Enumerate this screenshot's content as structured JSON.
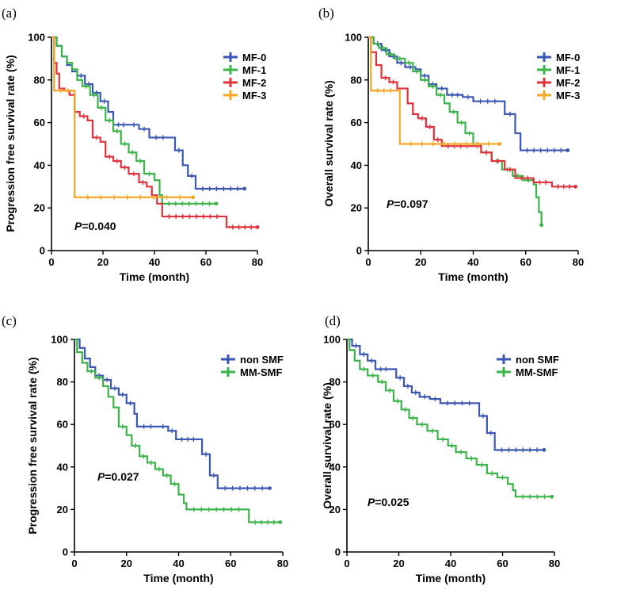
{
  "chart_data": [
    {
      "type": "line",
      "panel_label": "(a)",
      "xlabel": "Time (month)",
      "ylabel": "Progression free survival rate (%)",
      "xlim": [
        0,
        80
      ],
      "ylim": [
        0,
        100
      ],
      "xticks": [
        0,
        20,
        40,
        60,
        80
      ],
      "yticks": [
        0,
        20,
        40,
        60,
        80,
        100
      ],
      "p_prefix": "P",
      "p_value": "=0.040",
      "legend_position": "top-right",
      "series": [
        {
          "name": "MF-0",
          "color": "#3a57b3",
          "points": [
            [
              0,
              100
            ],
            [
              2,
              96
            ],
            [
              4,
              91
            ],
            [
              6,
              87
            ],
            [
              8,
              84
            ],
            [
              10,
              82
            ],
            [
              13,
              78
            ],
            [
              16,
              74
            ],
            [
              19,
              70
            ],
            [
              22,
              65
            ],
            [
              24,
              59
            ],
            [
              30,
              59
            ],
            [
              34,
              57
            ],
            [
              38,
              53
            ],
            [
              46,
              53
            ],
            [
              48,
              47
            ],
            [
              51,
              40
            ],
            [
              53,
              35
            ],
            [
              56,
              29
            ],
            [
              75,
              29
            ]
          ]
        },
        {
          "name": "MF-1",
          "color": "#3bb44a",
          "points": [
            [
              0,
              100
            ],
            [
              2,
              96
            ],
            [
              4,
              91
            ],
            [
              6,
              88
            ],
            [
              8,
              85
            ],
            [
              10,
              80
            ],
            [
              12,
              77
            ],
            [
              15,
              73
            ],
            [
              18,
              67
            ],
            [
              21,
              61
            ],
            [
              24,
              56
            ],
            [
              27,
              50
            ],
            [
              30,
              46
            ],
            [
              33,
              42
            ],
            [
              36,
              36
            ],
            [
              40,
              33
            ],
            [
              42,
              26
            ],
            [
              43,
              22
            ],
            [
              64,
              22
            ]
          ]
        },
        {
          "name": "MF-2",
          "color": "#e0323c",
          "points": [
            [
              0,
              100
            ],
            [
              1,
              88
            ],
            [
              2,
              83
            ],
            [
              3,
              76
            ],
            [
              5,
              75
            ],
            [
              7,
              73
            ],
            [
              9,
              65
            ],
            [
              11,
              63
            ],
            [
              14,
              61
            ],
            [
              16,
              53
            ],
            [
              19,
              51
            ],
            [
              21,
              44
            ],
            [
              24,
              42
            ],
            [
              27,
              39
            ],
            [
              30,
              36
            ],
            [
              34,
              32
            ],
            [
              37,
              30
            ],
            [
              39,
              26
            ],
            [
              41,
              22
            ],
            [
              43,
              16
            ],
            [
              67,
              16
            ],
            [
              68,
              11
            ],
            [
              80,
              11
            ]
          ]
        },
        {
          "name": "MF-3",
          "color": "#f5a623",
          "points": [
            [
              0,
              100
            ],
            [
              1,
              75
            ],
            [
              9,
              75
            ],
            [
              9,
              25
            ],
            [
              55,
              25
            ]
          ]
        }
      ]
    },
    {
      "type": "line",
      "panel_label": "(b)",
      "xlabel": "Time (month)",
      "ylabel": "Overall survival rate (%)",
      "xlim": [
        0,
        80
      ],
      "ylim": [
        0,
        100
      ],
      "xticks": [
        0,
        20,
        40,
        60,
        80
      ],
      "yticks": [
        0,
        20,
        40,
        60,
        80,
        100
      ],
      "p_prefix": "P",
      "p_value": "=0.097",
      "legend_position": "top-right",
      "series": [
        {
          "name": "MF-0",
          "color": "#3a57b3",
          "points": [
            [
              0,
              100
            ],
            [
              2,
              97
            ],
            [
              5,
              94
            ],
            [
              8,
              91
            ],
            [
              11,
              88
            ],
            [
              14,
              86
            ],
            [
              18,
              85
            ],
            [
              20,
              82
            ],
            [
              23,
              78
            ],
            [
              26,
              76
            ],
            [
              30,
              73
            ],
            [
              36,
              72
            ],
            [
              40,
              70
            ],
            [
              51,
              70
            ],
            [
              52,
              64
            ],
            [
              56,
              55
            ],
            [
              58,
              47
            ],
            [
              76,
              47
            ]
          ]
        },
        {
          "name": "MF-1",
          "color": "#3bb44a",
          "points": [
            [
              0,
              100
            ],
            [
              2,
              97
            ],
            [
              4,
              95
            ],
            [
              7,
              92
            ],
            [
              10,
              90
            ],
            [
              14,
              88
            ],
            [
              17,
              84
            ],
            [
              20,
              80
            ],
            [
              23,
              77
            ],
            [
              26,
              73
            ],
            [
              29,
              69
            ],
            [
              31,
              65
            ],
            [
              34,
              60
            ],
            [
              37,
              55
            ],
            [
              40,
              50
            ],
            [
              43,
              46
            ],
            [
              47,
              42
            ],
            [
              51,
              38
            ],
            [
              55,
              35
            ],
            [
              59,
              33
            ],
            [
              63,
              31
            ],
            [
              64,
              25
            ],
            [
              65,
              18
            ],
            [
              66,
              12
            ]
          ]
        },
        {
          "name": "MF-2",
          "color": "#e0323c",
          "points": [
            [
              0,
              100
            ],
            [
              1,
              93
            ],
            [
              3,
              87
            ],
            [
              5,
              81
            ],
            [
              8,
              79
            ],
            [
              11,
              76
            ],
            [
              13,
              76
            ],
            [
              15,
              69
            ],
            [
              17,
              64
            ],
            [
              19,
              62
            ],
            [
              22,
              58
            ],
            [
              25,
              52
            ],
            [
              28,
              49
            ],
            [
              40,
              49
            ],
            [
              43,
              46
            ],
            [
              47,
              42
            ],
            [
              52,
              38
            ],
            [
              56,
              34
            ],
            [
              63,
              32
            ],
            [
              70,
              30
            ],
            [
              79,
              30
            ]
          ]
        },
        {
          "name": "MF-3",
          "color": "#f5a623",
          "points": [
            [
              0,
              100
            ],
            [
              1,
              75
            ],
            [
              11,
              75
            ],
            [
              12,
              50
            ],
            [
              50,
              50
            ]
          ]
        }
      ]
    },
    {
      "type": "line",
      "panel_label": "(c)",
      "xlabel": "Time (month)",
      "ylabel": "Progression free survival rate (%)",
      "xlim": [
        0,
        80
      ],
      "ylim": [
        0,
        100
      ],
      "xticks": [
        0,
        20,
        40,
        60,
        80
      ],
      "yticks": [
        0,
        20,
        40,
        60,
        80,
        100
      ],
      "p_prefix": "P",
      "p_value": "=0.027",
      "legend_position": "top-right",
      "series": [
        {
          "name": "non SMF",
          "color": "#3a57b3",
          "points": [
            [
              0,
              100
            ],
            [
              2,
              96
            ],
            [
              4,
              91
            ],
            [
              6,
              87
            ],
            [
              8,
              83
            ],
            [
              11,
              81
            ],
            [
              14,
              77
            ],
            [
              17,
              74
            ],
            [
              20,
              70
            ],
            [
              23,
              65
            ],
            [
              24,
              59
            ],
            [
              32,
              59
            ],
            [
              36,
              57
            ],
            [
              39,
              53
            ],
            [
              48,
              53
            ],
            [
              49,
              46
            ],
            [
              52,
              36
            ],
            [
              55,
              30
            ],
            [
              75,
              30
            ]
          ]
        },
        {
          "name": "MM-SMF",
          "color": "#3bb44a",
          "points": [
            [
              0,
              100
            ],
            [
              1,
              94
            ],
            [
              3,
              89
            ],
            [
              5,
              85
            ],
            [
              8,
              82
            ],
            [
              11,
              78
            ],
            [
              13,
              73
            ],
            [
              15,
              68
            ],
            [
              17,
              59
            ],
            [
              20,
              55
            ],
            [
              22,
              50
            ],
            [
              25,
              45
            ],
            [
              28,
              42
            ],
            [
              31,
              39
            ],
            [
              34,
              36
            ],
            [
              37,
              32
            ],
            [
              40,
              27
            ],
            [
              42,
              23
            ],
            [
              43,
              20
            ],
            [
              66,
              20
            ],
            [
              67,
              14
            ],
            [
              79,
              14
            ]
          ]
        }
      ]
    },
    {
      "type": "line",
      "panel_label": "(d)",
      "xlabel": "Time (month)",
      "ylabel": "Overall survival rate (%)",
      "xlim": [
        0,
        80
      ],
      "ylim": [
        0,
        100
      ],
      "xticks": [
        0,
        20,
        40,
        60,
        80
      ],
      "yticks": [
        0,
        20,
        40,
        60,
        80,
        100
      ],
      "p_prefix": "P",
      "p_value": "=0.025",
      "legend_position": "top-right",
      "series": [
        {
          "name": "non SMF",
          "color": "#3a57b3",
          "points": [
            [
              0,
              100
            ],
            [
              2,
              97
            ],
            [
              5,
              93
            ],
            [
              8,
              90
            ],
            [
              11,
              86
            ],
            [
              17,
              86
            ],
            [
              19,
              82
            ],
            [
              22,
              78
            ],
            [
              25,
              75
            ],
            [
              28,
              73
            ],
            [
              32,
              72
            ],
            [
              36,
              70
            ],
            [
              50,
              70
            ],
            [
              51,
              64
            ],
            [
              54,
              56
            ],
            [
              57,
              48
            ],
            [
              76,
              48
            ]
          ]
        },
        {
          "name": "MM-SMF",
          "color": "#3bb44a",
          "points": [
            [
              0,
              100
            ],
            [
              1,
              95
            ],
            [
              3,
              90
            ],
            [
              5,
              86
            ],
            [
              8,
              83
            ],
            [
              12,
              80
            ],
            [
              15,
              76
            ],
            [
              18,
              71
            ],
            [
              21,
              67
            ],
            [
              24,
              63
            ],
            [
              27,
              60
            ],
            [
              31,
              57
            ],
            [
              35,
              53
            ],
            [
              39,
              50
            ],
            [
              42,
              47
            ],
            [
              46,
              44
            ],
            [
              50,
              41
            ],
            [
              54,
              37
            ],
            [
              58,
              35
            ],
            [
              62,
              32
            ],
            [
              64,
              29
            ],
            [
              65,
              26
            ],
            [
              79,
              26
            ]
          ]
        }
      ]
    }
  ]
}
